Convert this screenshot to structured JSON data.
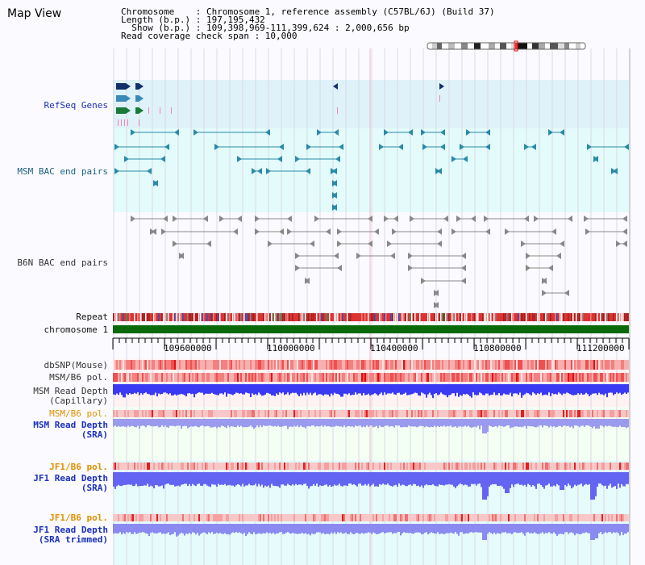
{
  "title": "Map View",
  "info": {
    "line1": "Chromosome    : Chromosome 1, reference assembly (C57BL/6J) (Build 37)",
    "line2": "Length (b.p.) : 197,195,432",
    "line3": "  Show (b.p.) : 109,398,969-111,399,624 : 2,000,656 bp",
    "line4": "Read coverage check span : 10,000"
  },
  "tracks": {
    "refseq": "RefSeq Genes",
    "msm_bac": "MSM BAC end pairs",
    "b6n_bac": "B6N BAC end pairs",
    "repeat": "Repeat",
    "chromosome": "chromosome 1",
    "dbsnp": "dbSNP(Mouse)",
    "msm_b6_pol_1": "MSM/B6 pol.",
    "msm_read_depth_cap_1": "MSM Read Depth",
    "msm_read_depth_cap_2": "(Capillary)",
    "msm_b6_pol_2": "MSM/B6 pol.",
    "msm_read_depth_sra_1": "MSM Read Depth",
    "msm_read_depth_sra_2": "(SRA)",
    "jf1_b6_pol_1": "JF1/B6 pol.",
    "jf1_read_depth_sra_1": "JF1 Read Depth",
    "jf1_read_depth_sra_2": "(SRA)",
    "jf1_b6_pol_2": "JF1/B6 pol.",
    "jf1_read_depth_trim_1": "JF1 Read Depth",
    "jf1_read_depth_trim_2": "(SRA trimmed)"
  },
  "ruler": {
    "ticks": [
      "109600000",
      "110000000",
      "110400000",
      "110800000",
      "111200000"
    ]
  },
  "colors": {
    "refseq_bg": "#dff2fa",
    "msm_bg": "#e3fbfb",
    "gene_dark": "#12306a",
    "gene_mid": "#3a8ab8",
    "gene_green": "#1a7a3a",
    "bac_teal": "#2a8aa8",
    "bac_gray": "#888888",
    "chrom_green": "#0a6a0a",
    "depth_blue": "#3c3cf0",
    "pol_red": "#f03030",
    "label_blue": "#1a2fbf",
    "label_orange": "#e09000"
  }
}
